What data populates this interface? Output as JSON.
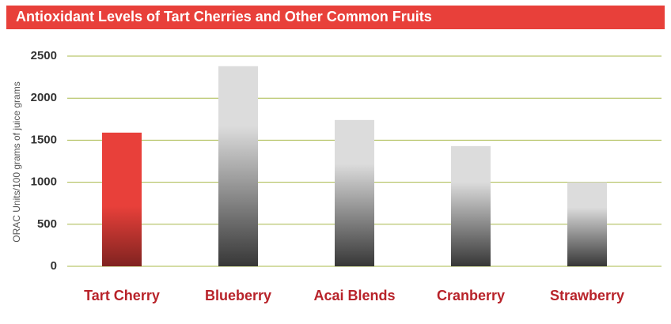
{
  "chart_data": {
    "type": "bar",
    "title": "Antioxidant Levels of Tart Cherries and Other Common Fruits",
    "y_label": "ORAC Units/100 grams of juice grams",
    "categories": [
      "Tart Cherry",
      "Blueberry",
      "Acai Blends",
      "Cranberry",
      "Strawberry"
    ],
    "values": [
      1590,
      2380,
      1740,
      1430,
      1000
    ],
    "colors": [
      "#e8403a",
      "#dcdcdc",
      "#dcdcdc",
      "#dcdcdc",
      "#dcdcdc"
    ],
    "ylim": [
      0,
      2500
    ],
    "yticks": [
      0,
      500,
      1000,
      1500,
      2000,
      2500
    ],
    "grid": true
  }
}
